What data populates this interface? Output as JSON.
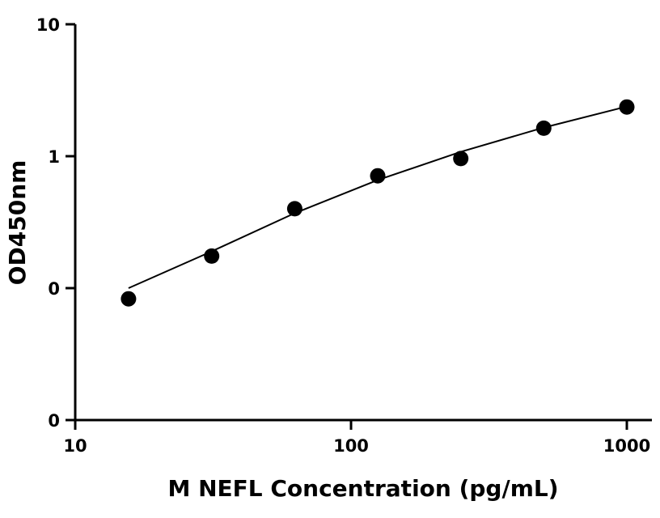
{
  "chart_data": {
    "type": "scatter",
    "title": "",
    "xlabel": "M NEFL Concentration (pg/mL)",
    "ylabel": "OD450nm",
    "x_scale": "log",
    "y_scale": "log",
    "xlim": [
      10,
      1000
    ],
    "ylim": [
      0.01,
      10
    ],
    "x_ticks": [
      {
        "value": 10,
        "label": "10"
      },
      {
        "value": 100,
        "label": "100"
      },
      {
        "value": 1000,
        "label": "1000"
      }
    ],
    "y_ticks": [
      {
        "value": 0.01,
        "label": "0"
      },
      {
        "value": 0.1,
        "label": "0"
      },
      {
        "value": 1,
        "label": "1"
      },
      {
        "value": 10,
        "label": "10"
      }
    ],
    "grid": false,
    "legend": "none",
    "color": "#000000",
    "series": [
      {
        "type": "scatter",
        "x": [
          15.6,
          31.25,
          62.5,
          125,
          250,
          500,
          1000
        ],
        "y": [
          0.083,
          0.175,
          0.4,
          0.71,
          0.96,
          1.63,
          2.36
        ]
      },
      {
        "type": "line",
        "x": [
          15.6,
          31.25,
          62.5,
          125,
          250,
          500,
          1000
        ],
        "y": [
          0.1,
          0.19,
          0.37,
          0.66,
          1.08,
          1.65,
          2.38
        ]
      }
    ]
  }
}
